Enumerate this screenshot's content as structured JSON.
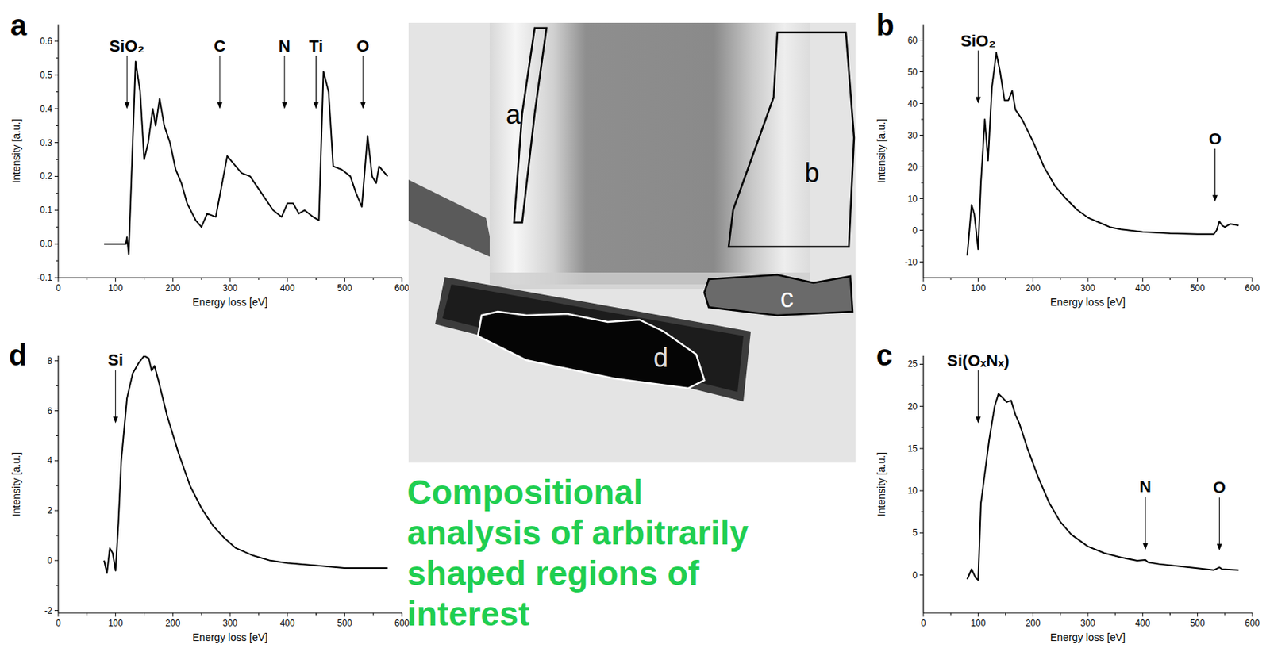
{
  "chart_data": [
    {
      "type": "line",
      "panel_label": "a",
      "x_label": "Energy loss [eV]",
      "y_label": "Intensity [a.u.]",
      "xlim": [
        0,
        600
      ],
      "xticks": [
        0,
        100,
        200,
        300,
        400,
        500,
        600
      ],
      "ylim": [
        -0.1,
        0.65
      ],
      "yticks": [
        -0.1,
        {
          "value": 0,
          "label": "0.0"
        },
        0.1,
        0.2,
        0.3,
        0.4,
        0.5,
        0.6
      ],
      "x": [
        80,
        118,
        120,
        123,
        135,
        143,
        150,
        157,
        165,
        170,
        177,
        185,
        195,
        205,
        215,
        225,
        240,
        250,
        260,
        275,
        295,
        305,
        320,
        335,
        355,
        375,
        390,
        400,
        410,
        420,
        430,
        445,
        455,
        463,
        472,
        480,
        495,
        510,
        520,
        530,
        540,
        548,
        555,
        560,
        565,
        575
      ],
      "values": [
        0,
        0,
        0.02,
        -0.03,
        0.54,
        0.45,
        0.25,
        0.3,
        0.4,
        0.35,
        0.43,
        0.35,
        0.3,
        0.22,
        0.18,
        0.12,
        0.07,
        0.05,
        0.09,
        0.08,
        0.26,
        0.24,
        0.21,
        0.2,
        0.15,
        0.1,
        0.08,
        0.12,
        0.12,
        0.09,
        0.1,
        0.08,
        0.07,
        0.51,
        0.45,
        0.23,
        0.22,
        0.2,
        0.15,
        0.11,
        0.32,
        0.2,
        0.18,
        0.23,
        0.22,
        0.2
      ],
      "color": "#000000",
      "annotations": [
        {
          "text": "SiO₂",
          "x": 120,
          "y": 0.4
        },
        {
          "text": "C",
          "x": 282,
          "y": 0.4
        },
        {
          "text": "N",
          "x": 395,
          "y": 0.4
        },
        {
          "text": "Ti",
          "x": 450,
          "y": 0.4
        },
        {
          "text": "O",
          "x": 532,
          "y": 0.4
        }
      ]
    },
    {
      "type": "line",
      "panel_label": "b",
      "x_label": "Energy loss [eV]",
      "y_label": "Intensity [a.u.]",
      "xlim": [
        0,
        600
      ],
      "xticks": [
        0,
        100,
        200,
        300,
        400,
        500,
        600
      ],
      "ylim": [
        -15,
        65
      ],
      "yticks": [
        -10,
        0,
        10,
        20,
        30,
        40,
        50,
        60
      ],
      "x": [
        80,
        88,
        93,
        100,
        105,
        112,
        118,
        125,
        133,
        140,
        148,
        155,
        162,
        168,
        180,
        200,
        220,
        240,
        260,
        280,
        300,
        320,
        340,
        360,
        400,
        450,
        500,
        530,
        535,
        540,
        545,
        550,
        560,
        570,
        575
      ],
      "values": [
        -8,
        8,
        5,
        -6,
        15,
        35,
        22,
        45,
        56,
        50,
        41,
        41,
        44,
        38,
        35,
        28,
        20,
        14,
        10,
        6.5,
        4,
        2.5,
        1,
        0.3,
        -0.5,
        -1,
        -1.2,
        -1.2,
        0,
        2.8,
        1.5,
        1,
        2,
        1.7,
        1.5
      ],
      "color": "#000000",
      "annotations": [
        {
          "text": "SiO₂",
          "x": 100,
          "y": 40
        },
        {
          "text": "O",
          "x": 532,
          "y": 9
        }
      ]
    },
    {
      "type": "line",
      "panel_label": "c",
      "x_label": "Energy loss [eV]",
      "y_label": "Intensity [a.u.]",
      "xlim": [
        0,
        600
      ],
      "xticks": [
        0,
        100,
        200,
        300,
        400,
        500,
        600
      ],
      "ylim": [
        -4.5,
        26
      ],
      "yticks": [
        0,
        5,
        10,
        15,
        20,
        25
      ],
      "x": [
        80,
        88,
        95,
        100,
        105,
        112,
        120,
        130,
        137,
        145,
        152,
        160,
        168,
        175,
        190,
        210,
        230,
        250,
        270,
        300,
        330,
        360,
        390,
        405,
        410,
        430,
        460,
        500,
        530,
        540,
        545,
        575
      ],
      "values": [
        -0.5,
        0.7,
        -0.3,
        -0.6,
        8.5,
        12,
        16,
        20,
        21.5,
        21,
        20.5,
        20.7,
        19,
        18,
        15,
        11.5,
        8.5,
        6.3,
        4.8,
        3.4,
        2.6,
        2.1,
        1.7,
        1.8,
        1.5,
        1.3,
        1.1,
        0.8,
        0.6,
        0.9,
        0.7,
        0.6
      ],
      "color": "#000000",
      "annotations": [
        {
          "text": "Si(OₓNₓ)",
          "x": 100,
          "y": 18
        },
        {
          "text": "N",
          "x": 405,
          "y": 3
        },
        {
          "text": "O",
          "x": 540,
          "y": 2.9
        }
      ]
    },
    {
      "type": "line",
      "panel_label": "d",
      "x_label": "Energy loss [eV]",
      "y_label": "Intensity [a.u.]",
      "xlim": [
        0,
        600
      ],
      "xticks": [
        0,
        100,
        200,
        300,
        400,
        500,
        600
      ],
      "ylim": [
        -2.1,
        8.2
      ],
      "yticks": [
        -2,
        0,
        2,
        4,
        6,
        8
      ],
      "x": [
        80,
        85,
        90,
        95,
        100,
        105,
        110,
        120,
        130,
        140,
        150,
        158,
        163,
        168,
        175,
        190,
        210,
        230,
        250,
        270,
        290,
        310,
        340,
        370,
        400,
        450,
        500,
        540,
        575
      ],
      "values": [
        0,
        -0.5,
        0.5,
        0.3,
        -0.4,
        1.5,
        4,
        6.5,
        7.5,
        7.9,
        8.2,
        8.1,
        7.6,
        7.8,
        7.2,
        5.8,
        4.3,
        3,
        2.1,
        1.4,
        0.9,
        0.5,
        0.2,
        0,
        -0.1,
        -0.2,
        -0.3,
        -0.3,
        -0.3
      ],
      "color": "#000000",
      "annotations": [
        {
          "text": "Si",
          "x": 100,
          "y": 5.5
        }
      ]
    }
  ],
  "micrograph": {
    "regions": [
      "a",
      "b",
      "c",
      "d"
    ]
  },
  "caption": [
    "Compositional",
    "analysis of arbitrarily",
    "shaped regions of",
    "interest"
  ]
}
